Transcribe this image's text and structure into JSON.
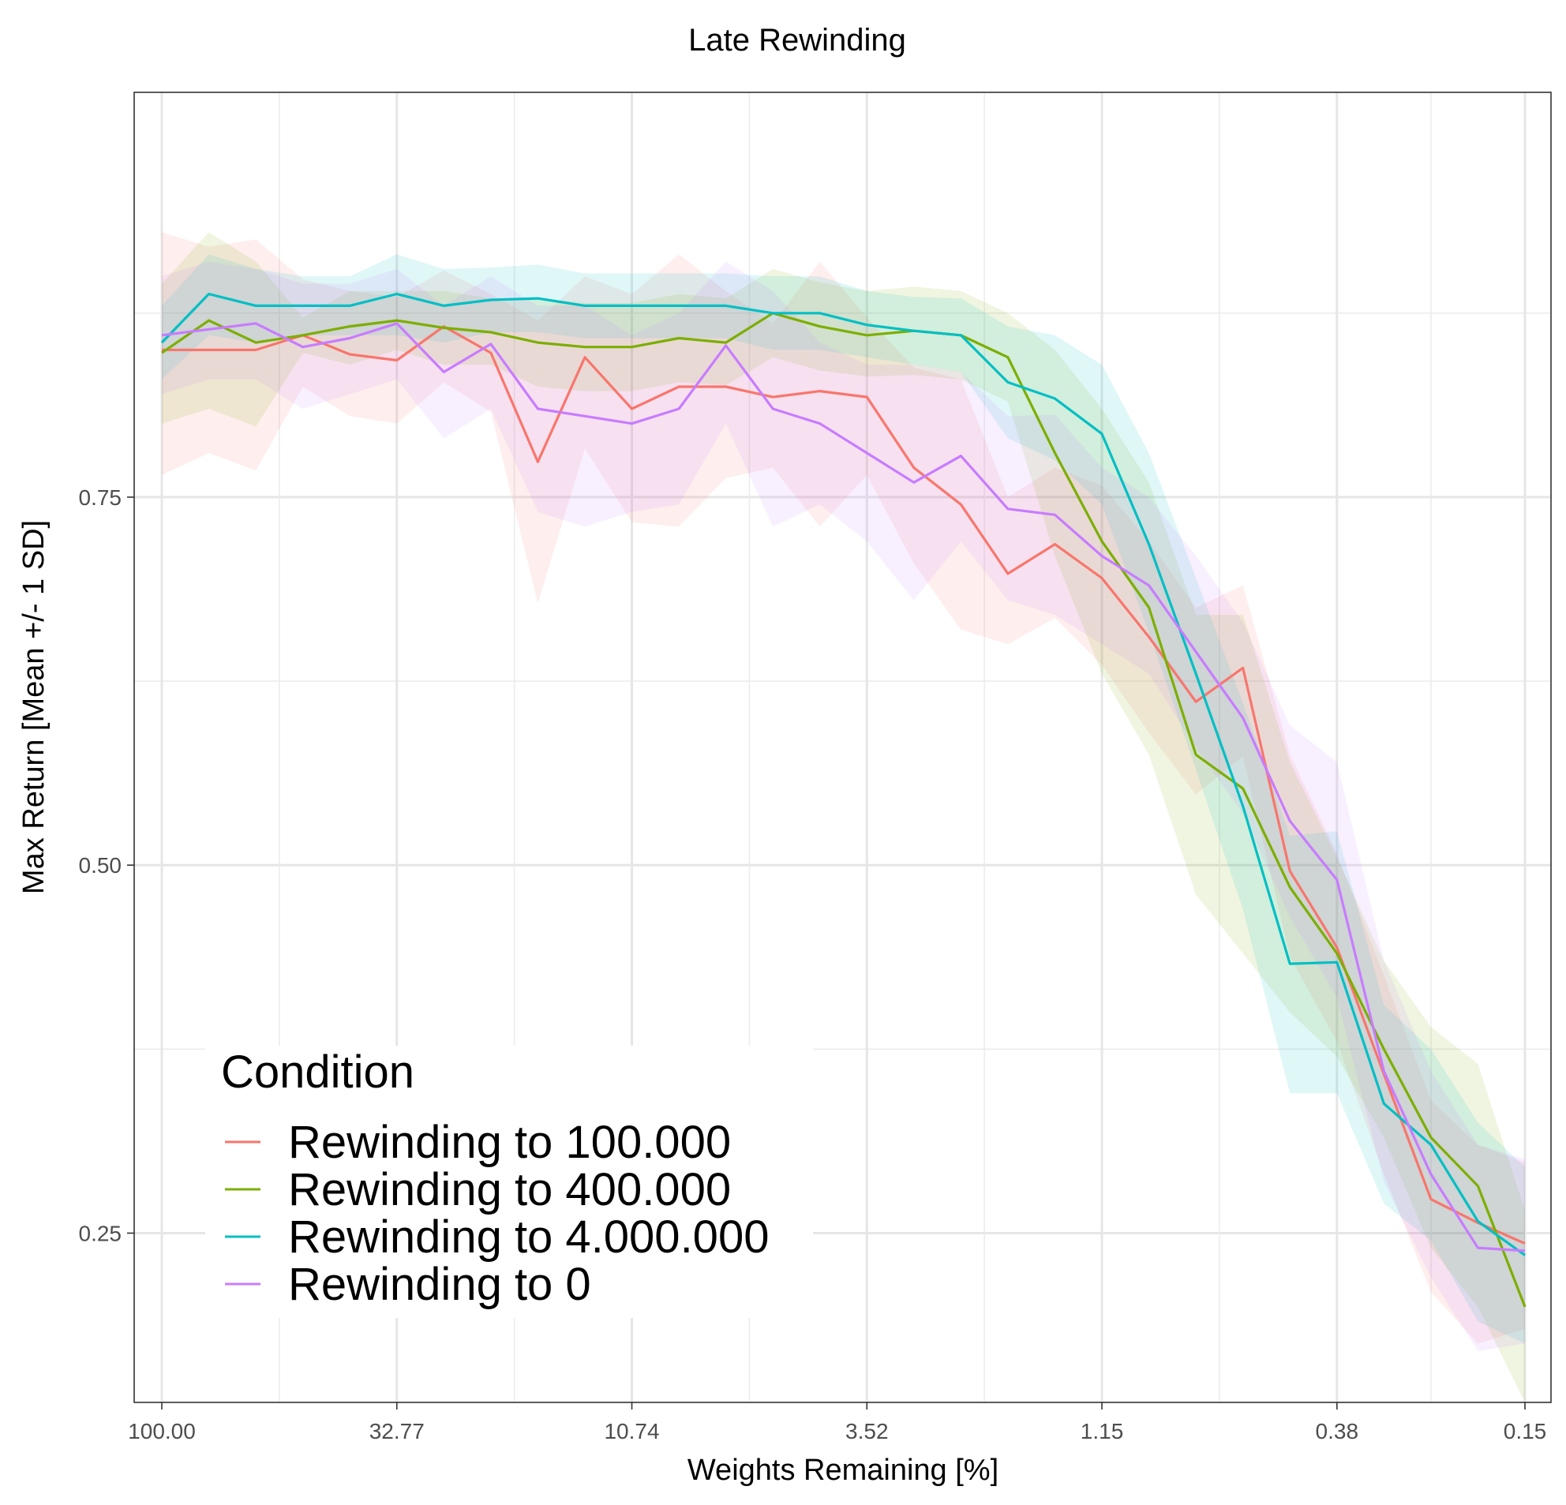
{
  "chart_data": {
    "type": "line",
    "title": "Late Rewinding",
    "xlabel": "Weights Remaining [%]",
    "ylabel": "Max Return [Mean +/- 1 SD]",
    "x_scale": "log",
    "x_tick_labels": [
      "100.00",
      "32.77",
      "10.74",
      "3.52",
      "1.15",
      "0.38",
      "0.15"
    ],
    "y_ticks": [
      0.25,
      0.5,
      0.75
    ],
    "y_tick_labels": [
      "0.25",
      "0.50",
      "0.75"
    ],
    "ylim": [
      0.135,
      1.025
    ],
    "grid": true,
    "legend": {
      "title": "Condition",
      "position": "bottom-left"
    },
    "x_points": 30,
    "series": [
      {
        "name": "Rewinding to 100.000",
        "color": "#F8766D",
        "mean": [
          0.85,
          0.85,
          0.85,
          0.86,
          0.847,
          0.843,
          0.866,
          0.848,
          0.774,
          0.845,
          0.81,
          0.825,
          0.825,
          0.818,
          0.822,
          0.818,
          0.77,
          0.745,
          0.698,
          0.718,
          0.695,
          0.655,
          0.611,
          0.634,
          0.496,
          0.444,
          0.358,
          0.273,
          0.257,
          0.243
        ],
        "lower": [
          0.765,
          0.78,
          0.768,
          0.825,
          0.805,
          0.8,
          0.828,
          0.808,
          0.678,
          0.783,
          0.733,
          0.73,
          0.763,
          0.77,
          0.73,
          0.765,
          0.705,
          0.66,
          0.65,
          0.668,
          0.636,
          0.59,
          0.548,
          0.574,
          0.438,
          0.38,
          0.29,
          0.21,
          0.175,
          0.185
        ],
        "upper": [
          0.93,
          0.92,
          0.925,
          0.898,
          0.89,
          0.886,
          0.904,
          0.888,
          0.87,
          0.9,
          0.888,
          0.915,
          0.89,
          0.868,
          0.91,
          0.872,
          0.838,
          0.83,
          0.75,
          0.77,
          0.758,
          0.72,
          0.675,
          0.69,
          0.575,
          0.508,
          0.425,
          0.34,
          0.31,
          0.298
        ]
      },
      {
        "name": "Rewinding to 400.000",
        "color": "#7CAE00",
        "mean": [
          0.848,
          0.87,
          0.855,
          0.86,
          0.866,
          0.87,
          0.865,
          0.862,
          0.855,
          0.852,
          0.852,
          0.858,
          0.855,
          0.875,
          0.866,
          0.86,
          0.863,
          0.86,
          0.845,
          0.78,
          0.72,
          0.675,
          0.575,
          0.552,
          0.485,
          0.44,
          0.375,
          0.315,
          0.282,
          0.2
        ],
        "lower": [
          0.8,
          0.81,
          0.798,
          0.848,
          0.84,
          0.85,
          0.84,
          0.84,
          0.825,
          0.822,
          0.822,
          0.828,
          0.826,
          0.845,
          0.836,
          0.832,
          0.833,
          0.83,
          0.815,
          0.71,
          0.63,
          0.575,
          0.48,
          0.44,
          0.4,
          0.37,
          0.315,
          0.24,
          0.2,
          0.135
        ],
        "upper": [
          0.895,
          0.93,
          0.91,
          0.872,
          0.89,
          0.89,
          0.89,
          0.885,
          0.885,
          0.882,
          0.882,
          0.888,
          0.885,
          0.905,
          0.896,
          0.89,
          0.893,
          0.89,
          0.875,
          0.85,
          0.81,
          0.76,
          0.67,
          0.67,
          0.57,
          0.505,
          0.435,
          0.39,
          0.365,
          0.265
        ]
      },
      {
        "name": "Rewinding to 4.000.000",
        "color": "#00BFC4",
        "mean": [
          0.855,
          0.888,
          0.88,
          0.88,
          0.88,
          0.888,
          0.88,
          0.884,
          0.885,
          0.88,
          0.88,
          0.88,
          0.88,
          0.875,
          0.875,
          0.867,
          0.863,
          0.86,
          0.828,
          0.817,
          0.793,
          0.718,
          0.63,
          0.54,
          0.433,
          0.434,
          0.338,
          0.31,
          0.258,
          0.235
        ],
        "lower": [
          0.83,
          0.86,
          0.855,
          0.86,
          0.86,
          0.86,
          0.855,
          0.862,
          0.862,
          0.858,
          0.858,
          0.858,
          0.858,
          0.85,
          0.85,
          0.845,
          0.84,
          0.835,
          0.79,
          0.775,
          0.745,
          0.658,
          0.565,
          0.47,
          0.345,
          0.345,
          0.27,
          0.245,
          0.19,
          0.175
        ],
        "upper": [
          0.88,
          0.915,
          0.905,
          0.9,
          0.9,
          0.915,
          0.905,
          0.906,
          0.908,
          0.902,
          0.902,
          0.902,
          0.902,
          0.9,
          0.9,
          0.89,
          0.886,
          0.885,
          0.866,
          0.86,
          0.84,
          0.78,
          0.695,
          0.61,
          0.52,
          0.523,
          0.405,
          0.375,
          0.325,
          0.295
        ]
      },
      {
        "name": "Rewinding to 0",
        "color": "#C77CFF",
        "mean": [
          0.86,
          0.864,
          0.868,
          0.852,
          0.858,
          0.868,
          0.835,
          0.854,
          0.81,
          0.805,
          0.8,
          0.81,
          0.853,
          0.81,
          0.8,
          0.78,
          0.76,
          0.778,
          0.742,
          0.738,
          0.71,
          0.69,
          0.645,
          0.6,
          0.53,
          0.49,
          0.36,
          0.29,
          0.24,
          0.238
        ],
        "lower": [
          0.82,
          0.83,
          0.83,
          0.81,
          0.82,
          0.83,
          0.79,
          0.81,
          0.74,
          0.73,
          0.74,
          0.745,
          0.8,
          0.73,
          0.745,
          0.72,
          0.68,
          0.72,
          0.68,
          0.67,
          0.65,
          0.63,
          0.58,
          0.535,
          0.465,
          0.41,
          0.285,
          0.22,
          0.17,
          0.175
        ],
        "upper": [
          0.9,
          0.91,
          0.905,
          0.895,
          0.895,
          0.905,
          0.88,
          0.9,
          0.88,
          0.88,
          0.86,
          0.875,
          0.91,
          0.89,
          0.855,
          0.84,
          0.84,
          0.835,
          0.805,
          0.806,
          0.77,
          0.75,
          0.71,
          0.665,
          0.595,
          0.57,
          0.435,
          0.36,
          0.31,
          0.3
        ]
      }
    ]
  }
}
